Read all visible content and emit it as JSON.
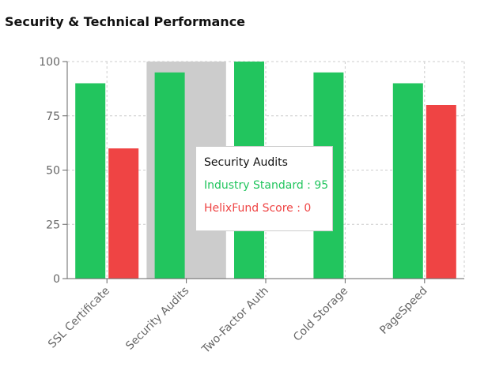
{
  "title": "Security & Technical Performance",
  "chart_data": {
    "type": "bar",
    "title": "Security & Technical Performance",
    "categories": [
      "SSL Certificate",
      "Security Audits",
      "Two-Factor Auth",
      "Cold Storage",
      "PageSpeed"
    ],
    "series": [
      {
        "name": "Industry Standard",
        "color": "#22c55e",
        "values": [
          90,
          95,
          100,
          95,
          90
        ]
      },
      {
        "name": "HelixFund Score",
        "color": "#ef4444",
        "values": [
          60,
          0,
          0,
          0,
          80
        ]
      }
    ],
    "ylim": [
      0,
      100
    ],
    "yticks": [
      "0",
      "25",
      "50",
      "75",
      "100"
    ],
    "grid": true,
    "highlighted_category": "Security Audits"
  },
  "tooltip": {
    "title": "Security Audits",
    "line1": "Industry Standard : 95",
    "line2": "HelixFund Score : 0"
  }
}
